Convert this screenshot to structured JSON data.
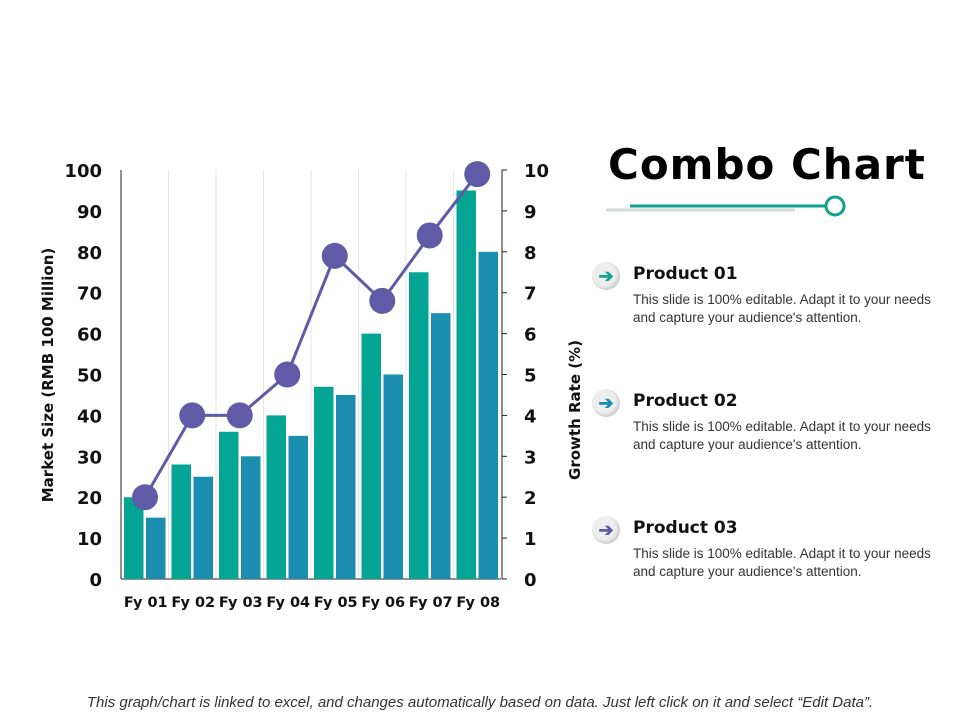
{
  "title": "Combo Chart",
  "footer": "This graph/chart is linked to excel, and changes automatically based on data. Just left click on it and select “Edit Data”.",
  "products": [
    {
      "icon": "arrow-right-icon",
      "color": "#0FA596",
      "title": "Product 01",
      "desc": "This slide is 100% editable. Adapt it to your needs and capture your audience's attention."
    },
    {
      "icon": "arrow-right-icon",
      "color": "#1B8EB0",
      "title": "Product 02",
      "desc": "This slide is 100% editable. Adapt it to your needs and capture your audience's attention."
    },
    {
      "icon": "arrow-right-icon",
      "color": "#5F5BA6",
      "title": "Product 03",
      "desc": "This slide is 100% editable. Adapt it to your needs and capture your audience's attention."
    }
  ],
  "chart_data": {
    "type": "bar+line",
    "categories": [
      "Fy 01",
      "Fy 02",
      "Fy 03",
      "Fy 04",
      "Fy 05",
      "Fy 06",
      "Fy 07",
      "Fy 08"
    ],
    "series": [
      {
        "type": "bar",
        "axis": "left",
        "color": "#05A595",
        "values": [
          20,
          28,
          36,
          40,
          47,
          60,
          75,
          95
        ]
      },
      {
        "type": "bar",
        "axis": "left",
        "color": "#1B8EB0",
        "values": [
          15,
          25,
          30,
          35,
          45,
          50,
          65,
          80
        ]
      },
      {
        "type": "line",
        "axis": "right",
        "color": "#5F5BA6",
        "values": [
          2,
          4,
          4,
          5,
          7.9,
          6.8,
          8.4,
          9.9
        ]
      }
    ],
    "ylabel": "Market Size (RMB 100 Million)",
    "y2label": "Growth Rate  (%)",
    "ylim": [
      0,
      100
    ],
    "y2lim": [
      0,
      10
    ],
    "yticks": [
      "0",
      "10",
      "20",
      "30",
      "40",
      "50",
      "60",
      "70",
      "80",
      "90",
      "100"
    ],
    "y2ticks": [
      "0",
      "1",
      "2",
      "3",
      "4",
      "5",
      "6",
      "7",
      "8",
      "9",
      "10"
    ],
    "grid": "vertical",
    "legend": "none"
  }
}
